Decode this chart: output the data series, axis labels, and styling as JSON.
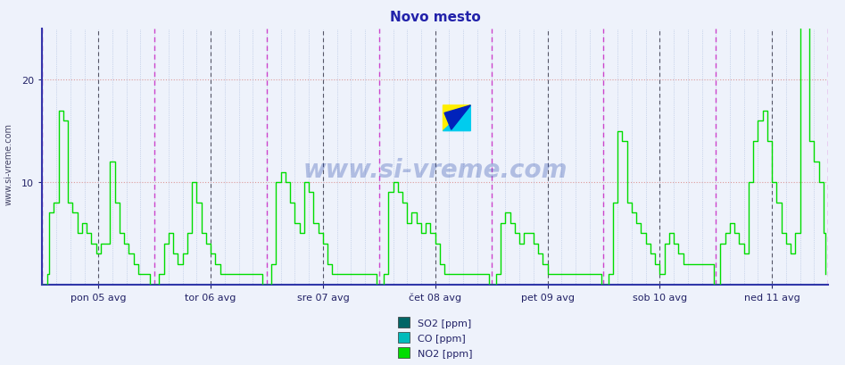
{
  "title": "Novo mesto",
  "title_color": "#2222aa",
  "background_color": "#eef2fb",
  "plot_bg_color": "#eef2fb",
  "grid_h_color": "#dd9999",
  "grid_v_color": "#aabbdd",
  "left_spine_color": "#3333aa",
  "bottom_spine_color": "#3333aa",
  "ylabel_text": "www.si-vreme.com",
  "ylim": [
    0,
    25
  ],
  "ytick_vals": [
    10,
    20
  ],
  "n_points": 336,
  "days": 7,
  "day_labels": [
    "pon 05 avg",
    "tor 06 avg",
    "sre 07 avg",
    "čet 08 avg",
    "pet 09 avg",
    "sob 10 avg",
    "ned 11 avg"
  ],
  "so2_color": "#006666",
  "co_color": "#00bbbb",
  "no2_color": "#00dd00",
  "legend_items": [
    "SO2 [ppm]",
    "CO [ppm]",
    "NO2 [ppm]"
  ],
  "legend_colors": [
    "#006666",
    "#00bbbb",
    "#00dd00"
  ],
  "watermark": "www.si-vreme.com",
  "watermark_color": "#2244aa",
  "magenta_line_color": "#cc44cc",
  "dark_dash_color": "#555566",
  "arrow_color": "#cc0000"
}
